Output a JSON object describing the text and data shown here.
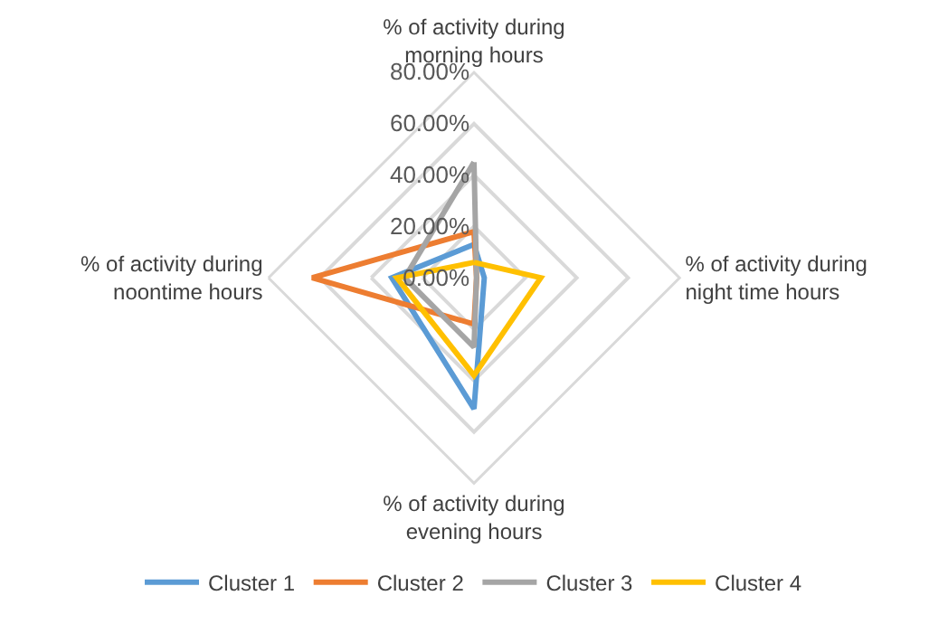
{
  "chart_data": {
    "type": "radar",
    "categories": [
      "% of activity during morning hours",
      "% of activity during night time hours",
      "% of activity during evening hours",
      "% of activity during noontime hours"
    ],
    "series": [
      {
        "name": "Cluster 1",
        "color": "#5b9bd5",
        "values": [
          13,
          4,
          51,
          32
        ]
      },
      {
        "name": "Cluster 2",
        "color": "#ed7d31",
        "values": [
          18,
          1,
          18,
          63
        ]
      },
      {
        "name": "Cluster 3",
        "color": "#a5a5a5",
        "values": [
          45,
          1,
          27,
          27
        ]
      },
      {
        "name": "Cluster 4",
        "color": "#ffc000",
        "values": [
          6,
          26,
          38,
          30
        ]
      }
    ],
    "ylim": [
      0,
      80
    ],
    "yticks": [
      {
        "value": 0,
        "label": "0.00%"
      },
      {
        "value": 20,
        "label": "20.00%"
      },
      {
        "value": 40,
        "label": "40.00%"
      },
      {
        "value": 60,
        "label": "60.00%"
      },
      {
        "value": 80,
        "label": "80.00%"
      }
    ],
    "grid": true,
    "legend": "bottom",
    "marker": "none",
    "line_style": "solid"
  }
}
